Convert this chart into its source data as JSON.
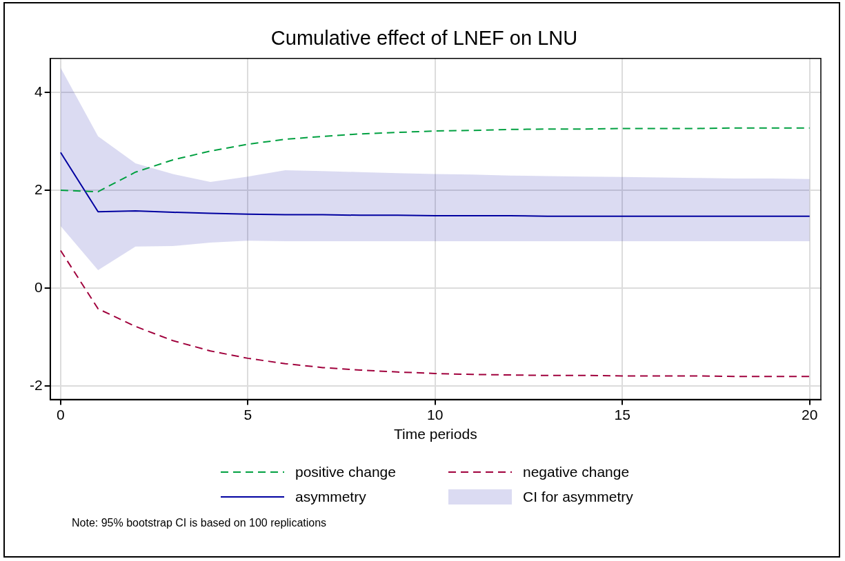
{
  "chart_data": {
    "type": "line",
    "title": "Cumulative effect of LNEF on LNU",
    "xlabel": "Time periods",
    "x": [
      0,
      1,
      2,
      3,
      4,
      5,
      6,
      7,
      8,
      9,
      10,
      11,
      12,
      13,
      14,
      15,
      16,
      17,
      18,
      19,
      20
    ],
    "xlim": [
      -0.28,
      20.3
    ],
    "xticks": [
      0,
      5,
      10,
      15,
      20
    ],
    "ylim": [
      -2.27,
      4.69
    ],
    "yticks": [
      -2,
      0,
      2,
      4
    ],
    "grid": true,
    "legend": "bottom",
    "marker": "none",
    "series": [
      {
        "name": "positive change",
        "type": "line",
        "line_style": "dashed",
        "color": "#00a040",
        "values": [
          2.0,
          1.97,
          2.37,
          2.62,
          2.8,
          2.94,
          3.04,
          3.1,
          3.15,
          3.18,
          3.21,
          3.22,
          3.24,
          3.25,
          3.25,
          3.26,
          3.26,
          3.26,
          3.27,
          3.27,
          3.27
        ]
      },
      {
        "name": "negative change",
        "type": "line",
        "line_style": "dashed",
        "color": "#a0003c",
        "values": [
          0.77,
          -0.42,
          -0.78,
          -1.07,
          -1.28,
          -1.43,
          -1.54,
          -1.62,
          -1.67,
          -1.71,
          -1.74,
          -1.76,
          -1.77,
          -1.78,
          -1.78,
          -1.79,
          -1.79,
          -1.79,
          -1.8,
          -1.8,
          -1.8
        ]
      },
      {
        "name": "asymmetry",
        "type": "line",
        "line_style": "solid",
        "color": "#0000a0",
        "values": [
          2.77,
          1.56,
          1.58,
          1.55,
          1.53,
          1.51,
          1.5,
          1.5,
          1.49,
          1.49,
          1.48,
          1.48,
          1.48,
          1.47,
          1.47,
          1.47,
          1.47,
          1.47,
          1.47,
          1.47,
          1.47
        ],
        "upper": [
          4.5,
          3.1,
          2.55,
          2.33,
          2.17,
          2.28,
          2.41,
          2.39,
          2.37,
          2.35,
          2.33,
          2.32,
          2.3,
          2.29,
          2.28,
          2.27,
          2.26,
          2.25,
          2.24,
          2.24,
          2.23
        ],
        "lower": [
          1.27,
          0.37,
          0.85,
          0.86,
          0.93,
          0.97,
          0.96,
          0.96,
          0.96,
          0.96,
          0.96,
          0.96,
          0.96,
          0.96,
          0.96,
          0.96,
          0.96,
          0.96,
          0.96,
          0.96,
          0.96
        ]
      }
    ],
    "annotations": [
      "CI for asymmetry",
      "Note: 95% bootstrap CI is based on 100 replications"
    ]
  }
}
